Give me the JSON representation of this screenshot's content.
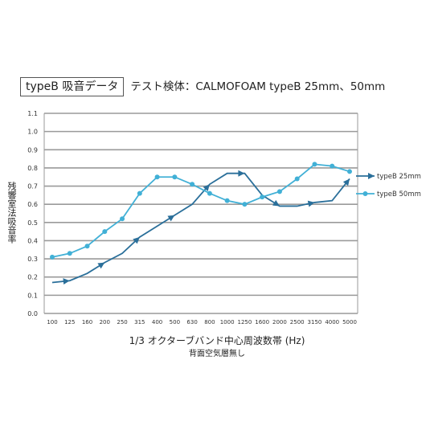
{
  "header": {
    "title": "typeB 吸音データ",
    "subtitle": "テスト検体：CALMOFOAM typeB 25mm、50mm"
  },
  "chart_data": {
    "type": "line",
    "title": "typeB 吸音データ",
    "xlabel": "1/3 オクターブバンド中心周波数帯 (Hz)",
    "x_note": "背面空気層無し",
    "ylabel": "残響室法吸音率",
    "categories": [
      "100",
      "125",
      "160",
      "200",
      "250",
      "315",
      "400",
      "500",
      "630",
      "800",
      "1000",
      "1250",
      "1600",
      "2000",
      "2500",
      "3150",
      "4000",
      "5000"
    ],
    "yticks": [
      "0.0",
      "0.1",
      "0.2",
      "0.3",
      "0.4",
      "0.5",
      "0.6",
      "0.7",
      "0.8",
      "0.9",
      "1.0",
      "1.1"
    ],
    "ylim": [
      0,
      1.1
    ],
    "grid": true,
    "legend_position": "right",
    "series": [
      {
        "name": "typeB 25mm",
        "color": "#2a6f9a",
        "marker": "arrow",
        "values": [
          0.17,
          0.18,
          0.22,
          0.28,
          0.33,
          0.42,
          0.48,
          0.54,
          0.6,
          0.71,
          0.77,
          0.77,
          0.65,
          0.59,
          0.59,
          0.61,
          0.62,
          0.74
        ]
      },
      {
        "name": "typeB 50mm",
        "color": "#41b0d6",
        "marker": "circle",
        "values": [
          0.31,
          0.33,
          0.37,
          0.45,
          0.52,
          0.66,
          0.75,
          0.75,
          0.71,
          0.66,
          0.62,
          0.6,
          0.64,
          0.67,
          0.74,
          0.82,
          0.81,
          0.78
        ]
      }
    ]
  }
}
